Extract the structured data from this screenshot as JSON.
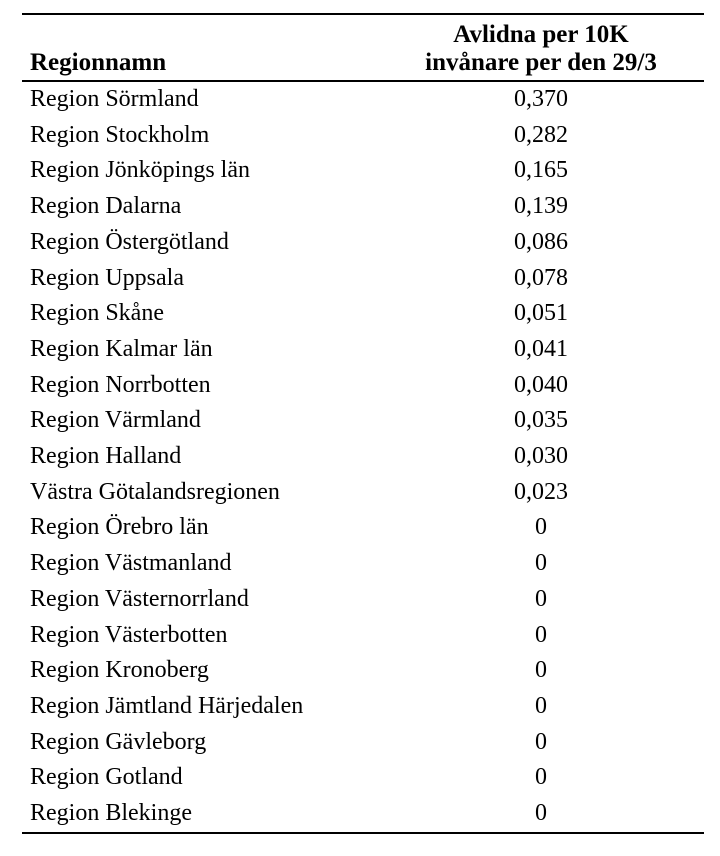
{
  "table": {
    "header": {
      "col1": "Regionnamn",
      "col2_line1": "Avlidna per 10K",
      "col2_line2": "invånare per den 29/3"
    },
    "rows": [
      {
        "region": "Region Sörmland",
        "value": "0,370"
      },
      {
        "region": "Region Stockholm",
        "value": "0,282"
      },
      {
        "region": "Region Jönköpings län",
        "value": "0,165"
      },
      {
        "region": "Region Dalarna",
        "value": "0,139"
      },
      {
        "region": "Region Östergötland",
        "value": "0,086"
      },
      {
        "region": "Region Uppsala",
        "value": "0,078"
      },
      {
        "region": "Region Skåne",
        "value": "0,051"
      },
      {
        "region": "Region Kalmar län",
        "value": "0,041"
      },
      {
        "region": "Region Norrbotten",
        "value": "0,040"
      },
      {
        "region": "Region Värmland",
        "value": "0,035"
      },
      {
        "region": "Region Halland",
        "value": "0,030"
      },
      {
        "region": "Västra Götalandsregionen",
        "value": "0,023"
      },
      {
        "region": "Region Örebro län",
        "value": "0"
      },
      {
        "region": "Region Västmanland",
        "value": "0"
      },
      {
        "region": "Region Västernorrland",
        "value": "0"
      },
      {
        "region": "Region Västerbotten",
        "value": "0"
      },
      {
        "region": "Region Kronoberg",
        "value": "0"
      },
      {
        "region": "Region Jämtland Härjedalen",
        "value": "0"
      },
      {
        "region": "Region Gävleborg",
        "value": "0"
      },
      {
        "region": "Region Gotland",
        "value": "0"
      },
      {
        "region": "Region Blekinge",
        "value": "0"
      }
    ]
  },
  "colors": {
    "text": "#000000",
    "background": "#ffffff",
    "rule": "#000000"
  }
}
